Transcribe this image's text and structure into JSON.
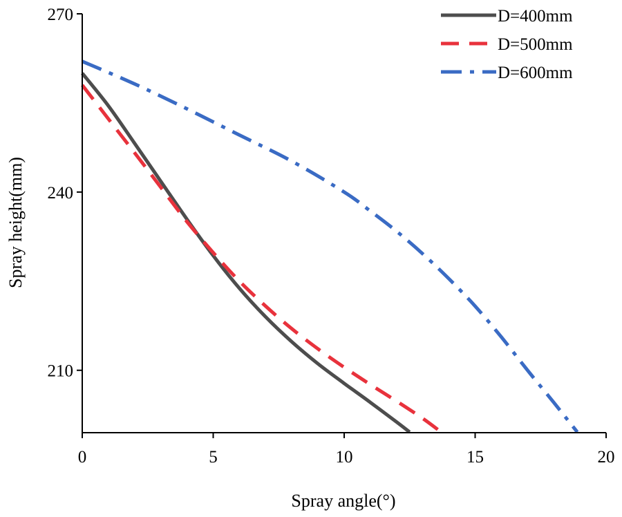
{
  "chart_data": {
    "type": "line",
    "title": "",
    "xlabel": "Spray angle(°)",
    "ylabel": "Spray height(mm)",
    "xlim": [
      0,
      20
    ],
    "ylim": [
      199.5,
      270
    ],
    "xticks": [
      0,
      5,
      10,
      15,
      20
    ],
    "yticks": [
      210,
      240,
      270
    ],
    "xtick_labels": [
      "0",
      "5",
      "10",
      "15",
      "20"
    ],
    "ytick_labels": [
      "210",
      "240",
      "270"
    ],
    "grid": false,
    "legend_position": "top-right",
    "series": [
      {
        "name": "D=400mm",
        "color": "#4d4d4d",
        "style": "solid",
        "points": [
          [
            0,
            260
          ],
          [
            1,
            254.5
          ],
          [
            2,
            248.2
          ],
          [
            3,
            241.8
          ],
          [
            4,
            235.4
          ],
          [
            5,
            229.3
          ],
          [
            6,
            223.8
          ],
          [
            7,
            219.0
          ],
          [
            8,
            214.8
          ],
          [
            9,
            211.1
          ],
          [
            10,
            207.8
          ],
          [
            11,
            204.6
          ],
          [
            12,
            201.3
          ],
          [
            12.5,
            199.6
          ]
        ]
      },
      {
        "name": "D=500mm",
        "color": "#e8323c",
        "style": "dashed",
        "points": [
          [
            0,
            258
          ],
          [
            1,
            252.3
          ],
          [
            2,
            246.6
          ],
          [
            3,
            240.8
          ],
          [
            4,
            235.0
          ],
          [
            5,
            229.8
          ],
          [
            6,
            225.0
          ],
          [
            7,
            220.8
          ],
          [
            8,
            217.0
          ],
          [
            9,
            213.6
          ],
          [
            10,
            210.5
          ],
          [
            11,
            207.6
          ],
          [
            12,
            204.8
          ],
          [
            13,
            201.9
          ],
          [
            13.7,
            199.6
          ]
        ]
      },
      {
        "name": "D=600mm",
        "color": "#3a6bc4",
        "style": "dashdot",
        "points": [
          [
            0,
            262
          ],
          [
            2,
            258.2
          ],
          [
            4,
            254.0
          ],
          [
            6,
            249.6
          ],
          [
            8,
            245.2
          ],
          [
            10,
            240.0
          ],
          [
            11,
            236.8
          ],
          [
            12,
            233.4
          ],
          [
            13,
            229.6
          ],
          [
            14,
            225.4
          ],
          [
            15,
            220.8
          ],
          [
            16,
            215.6
          ],
          [
            17,
            210.0
          ],
          [
            18,
            204.6
          ],
          [
            18.9,
            199.6
          ]
        ]
      }
    ]
  }
}
